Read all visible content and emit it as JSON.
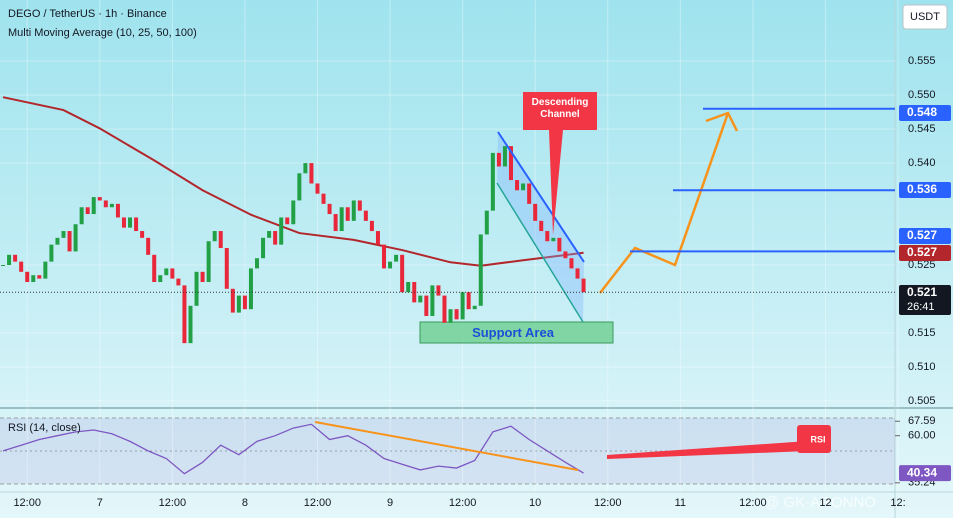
{
  "chart_data": [
    {
      "type": "candlestick",
      "title": "DEGO / TetherUS · 1h · Binance",
      "subtitle": "Multi Moving Average (10, 25, 50, 100)",
      "unit": "USDT",
      "x": [
        -16,
        -15,
        -14,
        -13,
        -12,
        -11,
        -10,
        -9,
        -8,
        -7,
        -6,
        -5,
        -4,
        -3,
        -2,
        -1,
        0,
        1,
        2,
        3,
        4,
        5,
        6,
        7,
        8,
        9,
        10,
        11,
        12,
        13,
        14,
        15,
        16,
        17,
        18,
        19,
        20,
        21,
        22,
        23,
        24,
        25,
        26,
        27,
        28,
        29,
        30,
        31,
        32,
        33,
        34,
        35,
        36,
        37,
        38,
        39,
        40,
        41,
        42,
        43,
        44,
        45,
        46,
        47,
        48,
        49,
        50,
        51,
        52,
        53,
        54,
        55,
        56,
        57,
        58,
        59,
        60,
        61,
        62,
        63,
        64,
        65,
        66,
        67,
        68,
        69,
        70,
        71,
        72,
        73,
        74,
        75,
        76,
        77,
        78,
        79,
        80
      ],
      "values": [
        0.525,
        0.5265,
        0.5255,
        0.524,
        0.5225,
        0.5235,
        0.523,
        0.5255,
        0.528,
        0.529,
        0.53,
        0.527,
        0.531,
        0.5335,
        0.5325,
        0.535,
        0.5345,
        0.5335,
        0.534,
        0.532,
        0.5305,
        0.532,
        0.53,
        0.529,
        0.5265,
        0.5225,
        0.5235,
        0.5245,
        0.523,
        0.522,
        0.5135,
        0.519,
        0.524,
        0.5225,
        0.5285,
        0.53,
        0.5275,
        0.5215,
        0.518,
        0.5205,
        0.5185,
        0.5245,
        0.526,
        0.529,
        0.53,
        0.528,
        0.532,
        0.531,
        0.5345,
        0.5385,
        0.54,
        0.537,
        0.5355,
        0.534,
        0.5325,
        0.53,
        0.5335,
        0.5315,
        0.5345,
        0.533,
        0.5315,
        0.53,
        0.528,
        0.5245,
        0.5255,
        0.5265,
        0.521,
        0.5225,
        0.5195,
        0.5205,
        0.5175,
        0.522,
        0.5205,
        0.5165,
        0.5185,
        0.517,
        0.521,
        0.5185,
        0.519,
        0.5295,
        0.533,
        0.5415,
        0.5395,
        0.5425,
        0.5375,
        0.536,
        0.537,
        0.534,
        0.5315,
        0.53,
        0.5285,
        0.529,
        0.527,
        0.526,
        0.5245,
        0.523,
        0.521
      ],
      "up_color": "#22a046",
      "down_color": "#e8283a",
      "moving_average": {
        "x": [
          -16,
          -6,
          0,
          9,
          17,
          25,
          33,
          42,
          50,
          58,
          63,
          70,
          80
        ],
        "values": [
          0.5497,
          0.5478,
          0.5451,
          0.5404,
          0.536,
          0.5324,
          0.5297,
          0.5287,
          0.5272,
          0.5254,
          0.5249,
          0.5257,
          0.5268
        ],
        "color": "#b3262b",
        "tag": 0.527
      },
      "levels": [
        {
          "value": 0.548,
          "color": "#2962ff"
        },
        {
          "value": 0.536,
          "color": "#2962ff"
        },
        {
          "value": 0.527,
          "color": "#2962ff"
        }
      ],
      "current": {
        "value": 0.521,
        "countdown": "26:41"
      },
      "xlim": [
        -16.5,
        131.5
      ],
      "ylim": [
        0.5044,
        0.564
      ],
      "yticks": [
        0.505,
        {
          "value": 0.51,
          "label": "0.510"
        },
        0.515,
        0.525,
        {
          "value": 0.54,
          "label": "0.540"
        },
        0.545,
        {
          "value": 0.55,
          "label": "0.550"
        },
        0.555
      ],
      "xticks": [
        {
          "value": -12,
          "label": "12:00"
        },
        {
          "value": 0,
          "label": "7"
        },
        {
          "value": 12,
          "label": "12:00"
        },
        {
          "value": 24,
          "label": "8"
        },
        {
          "value": 36,
          "label": "12:00"
        },
        {
          "value": 48,
          "label": "9"
        },
        {
          "value": 60,
          "label": "12:00"
        },
        {
          "value": 72,
          "label": "10"
        },
        {
          "value": 84,
          "label": "12:00"
        },
        {
          "value": 96,
          "label": "11"
        },
        {
          "value": 108,
          "label": "12:00"
        },
        {
          "value": 120,
          "label": "12"
        },
        {
          "value": 132,
          "label": "12:"
        }
      ],
      "annotations": [
        "Descending Channel",
        "Support Area"
      ],
      "watermark": "@ GK-ARONNO"
    },
    {
      "type": "line",
      "title": "RSI (14, close)",
      "x": [
        -16,
        -13,
        -10,
        -7,
        -4,
        -1,
        2,
        5,
        8,
        11,
        14,
        17,
        20,
        23,
        26,
        29,
        32,
        35,
        38,
        41,
        44,
        47,
        50,
        53,
        56,
        59,
        62,
        65,
        68,
        71,
        74,
        77,
        80
      ],
      "values": [
        52,
        55,
        58,
        60,
        62,
        63,
        61,
        57,
        52,
        48,
        40,
        46,
        55,
        50,
        57,
        60,
        64,
        66,
        58,
        60,
        55,
        48,
        45,
        42,
        44,
        43,
        47,
        62,
        65,
        58,
        52,
        46,
        40.34
      ],
      "color": "#7e57c2",
      "ylim": [
        30.4,
        73.5
      ],
      "yticks": [
        35.24,
        {
          "value": 60,
          "label": "60.00"
        },
        67.59
      ],
      "current": 40.34,
      "annotation": "RSI"
    }
  ]
}
